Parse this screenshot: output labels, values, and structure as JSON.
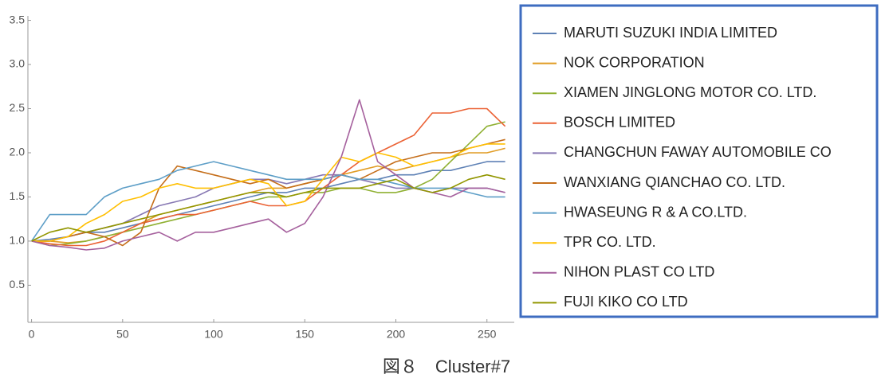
{
  "chart_data": {
    "type": "line",
    "caption": "図８　Cluster#7",
    "x": [
      0,
      10,
      20,
      30,
      40,
      50,
      60,
      70,
      80,
      90,
      100,
      110,
      120,
      130,
      140,
      150,
      160,
      170,
      180,
      190,
      200,
      210,
      220,
      230,
      240,
      250,
      260
    ],
    "xlim": [
      -2,
      265
    ],
    "xticks": [
      0,
      50,
      100,
      150,
      200,
      250
    ],
    "ylim": [
      0.08,
      3.55
    ],
    "yticks": [
      0.5,
      {
        "value": 1,
        "label": "1.0"
      },
      1.5,
      {
        "value": 2,
        "label": "2.0"
      },
      2.5,
      {
        "value": 3,
        "label": "3.0"
      },
      3.5
    ],
    "series": [
      {
        "name": "MARUTI SUZUKI INDIA LIMITED",
        "color": "#5e81b5",
        "values": [
          1.0,
          1.02,
          1.05,
          1.1,
          1.1,
          1.15,
          1.2,
          1.25,
          1.3,
          1.35,
          1.4,
          1.45,
          1.5,
          1.55,
          1.55,
          1.6,
          1.6,
          1.65,
          1.7,
          1.7,
          1.75,
          1.75,
          1.8,
          1.8,
          1.85,
          1.9,
          1.9
        ]
      },
      {
        "name": "NOK CORPORATION",
        "color": "#e19c24",
        "values": [
          1.0,
          1.0,
          0.98,
          1.0,
          1.05,
          1.1,
          1.2,
          1.3,
          1.35,
          1.4,
          1.45,
          1.5,
          1.55,
          1.6,
          1.6,
          1.65,
          1.7,
          1.75,
          1.8,
          1.85,
          1.8,
          1.85,
          1.9,
          1.95,
          2.0,
          2.0,
          2.05
        ]
      },
      {
        "name": "XIAMEN JINGLONG MOTOR CO. LTD.",
        "color": "#8fb032",
        "values": [
          1.0,
          0.95,
          0.97,
          1.0,
          1.05,
          1.1,
          1.15,
          1.2,
          1.25,
          1.3,
          1.35,
          1.4,
          1.45,
          1.5,
          1.5,
          1.55,
          1.55,
          1.6,
          1.6,
          1.55,
          1.55,
          1.6,
          1.7,
          1.9,
          2.1,
          2.3,
          2.35
        ]
      },
      {
        "name": "BOSCH LIMITED",
        "color": "#eb6235",
        "values": [
          1.0,
          0.97,
          0.95,
          0.95,
          1.0,
          1.1,
          1.2,
          1.25,
          1.3,
          1.3,
          1.35,
          1.4,
          1.45,
          1.4,
          1.4,
          1.45,
          1.6,
          1.75,
          1.9,
          2.0,
          2.1,
          2.2,
          2.45,
          2.45,
          2.5,
          2.5,
          2.3
        ]
      },
      {
        "name": "CHANGCHUN FAWAY AUTOMOBILE CO",
        "color": "#8778b3",
        "values": [
          1.0,
          1.0,
          1.05,
          1.1,
          1.15,
          1.2,
          1.3,
          1.4,
          1.45,
          1.5,
          1.6,
          1.65,
          1.7,
          1.7,
          1.65,
          1.7,
          1.75,
          1.75,
          1.7,
          1.65,
          1.6,
          1.6,
          1.55,
          1.6,
          1.6,
          1.6,
          1.55
        ]
      },
      {
        "name": "WANXIANG QIANCHAO CO. LTD.",
        "color": "#c56e1a",
        "values": [
          1.0,
          1.0,
          1.05,
          1.1,
          1.05,
          0.95,
          1.1,
          1.6,
          1.85,
          1.8,
          1.75,
          1.7,
          1.65,
          1.7,
          1.6,
          1.65,
          1.7,
          1.75,
          1.7,
          1.8,
          1.9,
          1.95,
          2.0,
          2.0,
          2.05,
          2.1,
          2.15
        ]
      },
      {
        "name": "HWASEUNG R & A CO.LTD.",
        "color": "#5d9ec7",
        "values": [
          1.0,
          1.3,
          1.3,
          1.3,
          1.5,
          1.6,
          1.65,
          1.7,
          1.8,
          1.85,
          1.9,
          1.85,
          1.8,
          1.75,
          1.7,
          1.7,
          1.7,
          1.75,
          1.7,
          1.7,
          1.65,
          1.6,
          1.6,
          1.6,
          1.55,
          1.5,
          1.5
        ]
      },
      {
        "name": "TPR CO. LTD.",
        "color": "#ffbf00",
        "values": [
          1.0,
          1.0,
          1.05,
          1.2,
          1.3,
          1.45,
          1.5,
          1.6,
          1.65,
          1.6,
          1.6,
          1.65,
          1.7,
          1.65,
          1.4,
          1.45,
          1.7,
          1.95,
          1.9,
          2.0,
          1.95,
          1.85,
          1.9,
          1.95,
          2.05,
          2.1,
          2.1
        ]
      },
      {
        "name": "NIHON PLAST CO LTD",
        "color": "#a5609d",
        "values": [
          1.0,
          0.95,
          0.93,
          0.9,
          0.92,
          1.0,
          1.05,
          1.1,
          1.0,
          1.1,
          1.1,
          1.15,
          1.2,
          1.25,
          1.1,
          1.2,
          1.5,
          1.95,
          2.6,
          1.9,
          1.75,
          1.6,
          1.55,
          1.5,
          1.6,
          1.6,
          1.55
        ]
      },
      {
        "name": "FUJI KIKO CO LTD",
        "color": "#929600",
        "values": [
          1.0,
          1.1,
          1.15,
          1.1,
          1.15,
          1.2,
          1.25,
          1.3,
          1.35,
          1.4,
          1.45,
          1.5,
          1.55,
          1.55,
          1.5,
          1.55,
          1.6,
          1.6,
          1.6,
          1.65,
          1.7,
          1.6,
          1.55,
          1.6,
          1.7,
          1.75,
          1.7
        ]
      }
    ]
  }
}
